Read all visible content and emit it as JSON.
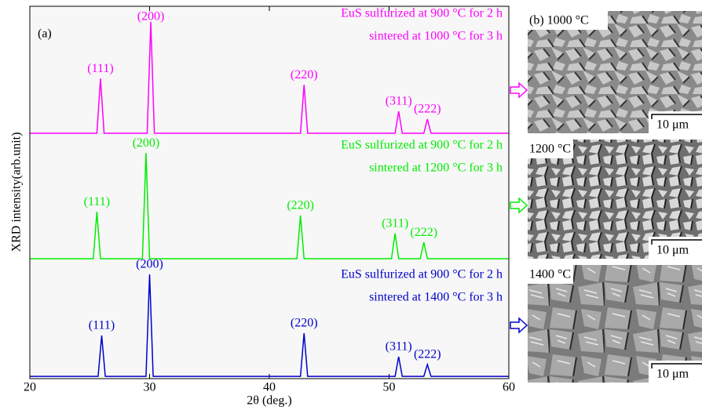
{
  "chart_data": {
    "type": "line",
    "panel_label": "(a)",
    "x_label": "2θ (deg.)",
    "y_label": "XRD intensity(arb.unit)",
    "xlim": [
      20,
      60
    ],
    "xticks": [
      20,
      30,
      40,
      50,
      60
    ],
    "ylim": [
      0,
      100
    ],
    "series": [
      {
        "name": "EuS sulfurized at 900 °C for 2 h",
        "legend_lines": [
          "EuS sulfurized at 900 °C for 2 h",
          "sintered at 1000 °C for 3 h"
        ],
        "color": "#ff00ff",
        "x": [
          20,
          25.6,
          25.9,
          26.2,
          29.8,
          30.1,
          30.4,
          42.6,
          42.9,
          43.2,
          50.5,
          50.8,
          51.1,
          52.9,
          53.2,
          53.5,
          60
        ],
        "values": [
          65.9,
          65.9,
          80.6,
          65.9,
          65.9,
          95.8,
          65.9,
          65.9,
          78.9,
          65.9,
          65.9,
          71.8,
          65.9,
          65.9,
          69.7,
          65.9,
          65.9
        ],
        "peak_labels": [
          "(111)",
          "(200)",
          "(220)",
          "(311)",
          "(222)"
        ]
      },
      {
        "name": "EuS sulfurized at 900 °C for 2 h",
        "legend_lines": [
          "EuS sulfurized at 900 °C for 2 h",
          "sintered at 1200 °C for 3 h"
        ],
        "color": "#00ee00",
        "x": [
          20,
          25.3,
          25.6,
          25.9,
          29.4,
          29.7,
          30.0,
          42.3,
          42.6,
          42.9,
          50.2,
          50.5,
          50.8,
          52.6,
          52.9,
          53.2,
          60
        ],
        "values": [
          32.2,
          32.2,
          44.8,
          32.2,
          32.2,
          60.6,
          32.2,
          32.2,
          43.8,
          32.2,
          32.2,
          39,
          32.2,
          32.2,
          36.6,
          32.2,
          32.2
        ],
        "peak_labels": [
          "(111)",
          "(200)",
          "(220)",
          "(311)",
          "(222)"
        ]
      },
      {
        "name": "EuS sulfurized at 900 °C for 2 h",
        "legend_lines": [
          "EuS sulfurized at 900 °C for 2 h",
          "sintered at 1400 °C for 3 h"
        ],
        "color": "#0000cc",
        "x": [
          20,
          25.7,
          26.0,
          26.3,
          29.7,
          30.0,
          30.3,
          42.6,
          42.9,
          43.2,
          50.5,
          50.8,
          51.1,
          52.9,
          53.2,
          53.5,
          60
        ],
        "values": [
          0.6,
          0.6,
          11.6,
          0.6,
          0.6,
          28,
          0.6,
          0.6,
          12.2,
          0.6,
          0.6,
          5.9,
          0.6,
          0.6,
          3.8,
          0.6,
          0.6
        ],
        "peak_labels": [
          "(111)",
          "(200)",
          "(220)",
          "(311)",
          "(222)"
        ]
      }
    ]
  },
  "sem_panels": [
    {
      "label": "(b) 1000 °C",
      "scale_bar": "10 μm"
    },
    {
      "label": "1200 °C",
      "scale_bar": "10 μm"
    },
    {
      "label": "1400 °C",
      "scale_bar": "10 μm"
    }
  ]
}
